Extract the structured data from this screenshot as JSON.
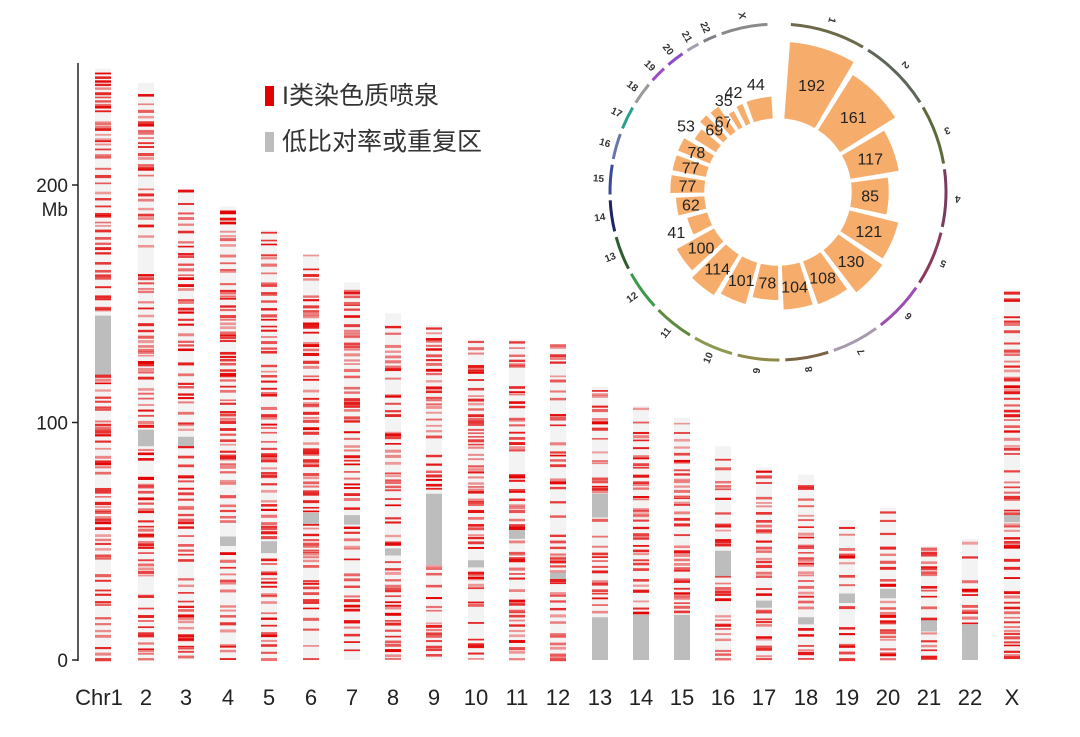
{
  "chart_data": [
    {
      "type": "ideogram",
      "yaxis": {
        "unit": "Mb",
        "ticks": [
          0,
          100,
          200
        ],
        "range": [
          0,
          250
        ]
      },
      "legend": [
        {
          "label": "I类染色质喷泉",
          "color": "#e30000"
        },
        {
          "label": "低比对率或重复区",
          "color": "#bdbdbd"
        }
      ],
      "legend_placement": "top",
      "chromosomes": [
        {
          "label": "Chr1",
          "length": 249,
          "gray": [
            [
              120,
              145
            ]
          ]
        },
        {
          "label": "2",
          "length": 243,
          "gray": [
            [
              90,
              97
            ]
          ]
        },
        {
          "label": "3",
          "length": 198,
          "gray": [
            [
              90,
              94
            ]
          ]
        },
        {
          "label": "4",
          "length": 191,
          "gray": [
            [
              48,
              52
            ]
          ]
        },
        {
          "label": "5",
          "length": 181,
          "gray": [
            [
              45,
              50
            ]
          ]
        },
        {
          "label": "6",
          "length": 171,
          "gray": [
            [
              57,
              62
            ]
          ]
        },
        {
          "label": "7",
          "length": 159,
          "gray": [
            [
              57,
              61
            ]
          ]
        },
        {
          "label": "8",
          "length": 146,
          "gray": [
            [
              44,
              47
            ]
          ]
        },
        {
          "label": "9",
          "length": 141,
          "gray": [
            [
              40,
              70
            ]
          ]
        },
        {
          "label": "10",
          "length": 135,
          "gray": [
            [
              39,
              42
            ]
          ]
        },
        {
          "label": "11",
          "length": 135,
          "gray": [
            [
              51,
              55
            ]
          ]
        },
        {
          "label": "12",
          "length": 133,
          "gray": [
            [
              34,
              37
            ]
          ]
        },
        {
          "label": "13",
          "length": 115,
          "gray": [
            [
              0,
              18
            ],
            [
              60,
              70
            ]
          ]
        },
        {
          "label": "14",
          "length": 107,
          "gray": [
            [
              0,
              19
            ]
          ]
        },
        {
          "label": "15",
          "length": 102,
          "gray": [
            [
              0,
              19
            ]
          ]
        },
        {
          "label": "16",
          "length": 90,
          "gray": [
            [
              35,
              46
            ]
          ]
        },
        {
          "label": "17",
          "length": 81,
          "gray": [
            [
              22,
              25
            ]
          ]
        },
        {
          "label": "18",
          "length": 78,
          "gray": [
            [
              15,
              18
            ]
          ]
        },
        {
          "label": "19",
          "length": 59,
          "gray": [
            [
              24,
              28
            ]
          ]
        },
        {
          "label": "20",
          "length": 64,
          "gray": [
            [
              26,
              30
            ]
          ]
        },
        {
          "label": "21",
          "length": 48,
          "gray": [
            [
              12,
              17
            ]
          ]
        },
        {
          "label": "22",
          "length": 51,
          "gray": [
            [
              0,
              15
            ]
          ]
        },
        {
          "label": "X",
          "length": 156,
          "gray": [
            [
              58,
              61
            ]
          ]
        }
      ]
    },
    {
      "type": "circular-bar",
      "categories": [
        "1",
        "2",
        "3",
        "4",
        "5",
        "6",
        "7",
        "8",
        "9",
        "10",
        "11",
        "12",
        "13",
        "14",
        "15",
        "16",
        "17",
        "18",
        "19",
        "20",
        "21",
        "22",
        "X"
      ],
      "values": [
        192,
        161,
        117,
        85,
        121,
        130,
        108,
        104,
        78,
        101,
        114,
        100,
        41,
        62,
        77,
        77,
        78,
        53,
        69,
        67,
        35,
        42,
        44
      ],
      "bar_color": "#f6ad6c",
      "ring_colors": [
        "#6d6a4a",
        "#5e6658",
        "#5c6a3c",
        "#7a3b5e",
        "#8a3a5a",
        "#9b4fb0",
        "#a89aae",
        "#7b6445",
        "#8f8a48",
        "#8a9a52",
        "#5f8a40",
        "#3c9a48",
        "#2f5e33",
        "#1c2466",
        "#3a4a9a",
        "#6a76a8",
        "#2aa18c",
        "#9a9a9a",
        "#9a4fc0",
        "#8a4fc8",
        "#a0a0b0",
        "#808088",
        "#8a8a8a"
      ]
    }
  ]
}
